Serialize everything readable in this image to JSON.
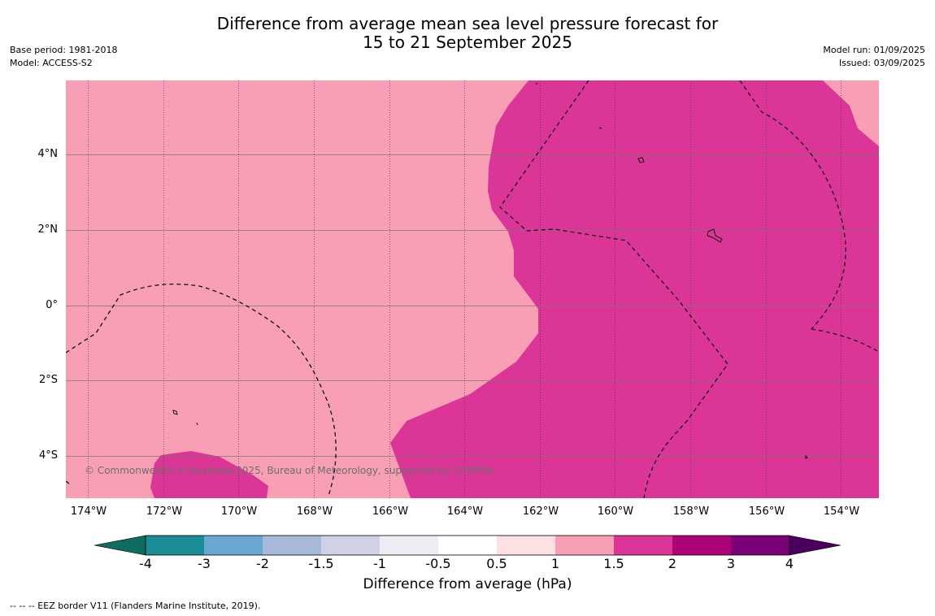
{
  "title": {
    "line1": "Difference from average mean sea level pressure forecast for",
    "line2": "15 to 21 September 2025"
  },
  "meta_left": {
    "base_period": "Base period: 1981-2018",
    "model": "Model: ACCESS-S2"
  },
  "meta_right": {
    "model_run": "Model run: 01/09/2025",
    "issued": "Issued: 03/09/2025"
  },
  "map": {
    "lat_labels": [
      "4°N",
      "2°N",
      "0°",
      "2°S",
      "4°S"
    ],
    "lon_labels": [
      "174°W",
      "172°W",
      "170°W",
      "168°W",
      "166°W",
      "164°W",
      "162°W",
      "160°W",
      "158°W",
      "156°W",
      "154°W"
    ],
    "copyright": "© Commonwealth of Australia 2025, Bureau of Meteorology, supported by COSPPac",
    "fill_colors": {
      "1_to_1.5": "#f89fb5",
      "1.5_to_2": "#db3597"
    }
  },
  "colorbar": {
    "ticks": [
      "-4",
      "-3",
      "-2",
      "-1.5",
      "-1",
      "-0.5",
      "0.5",
      "1",
      "1.5",
      "2",
      "3",
      "4"
    ],
    "colors": [
      "#0f6d5f",
      "#1b8d96",
      "#6aa8d2",
      "#a7badc",
      "#d0d0e6",
      "#efedf3",
      "#ffffff",
      "#fde0e2",
      "#f89fb5",
      "#db3597",
      "#ae0279",
      "#7a0177",
      "#4b0060"
    ],
    "label": "Difference from average (hPa)"
  },
  "footer": "--  --  -- EEZ border V11 (Flanders Marine Institute, 2019)."
}
